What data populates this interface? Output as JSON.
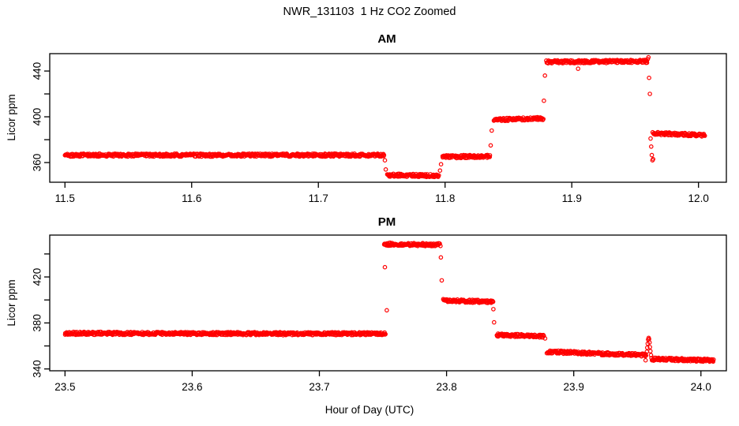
{
  "figure": {
    "title": "NWR_131103  1 Hz CO2 Zoomed",
    "xlabel": "Hour of Day (UTC)",
    "background_color": "#FFFFFF",
    "axis_color": "#000000",
    "point_color": "#FF0000",
    "marker": "open-circle"
  },
  "chart_data": [
    {
      "type": "scatter",
      "panel": "AM",
      "title": "AM",
      "ylabel": "Licor ppm",
      "xlim": [
        11.488,
        12.022
      ],
      "ylim": [
        342.8,
        455.2
      ],
      "xticks": [
        11.5,
        11.6,
        11.7,
        11.8,
        11.9,
        12.0
      ],
      "xtick_labels": [
        "11.5",
        "11.6",
        "11.7",
        "11.8",
        "11.9",
        "12.0"
      ],
      "yticks": [
        360,
        380,
        400,
        420,
        440
      ],
      "ytick_labels": [
        "360",
        "",
        "400",
        "",
        "440"
      ],
      "grid": false,
      "sample_rate_hz": 1,
      "segments": [
        {
          "t0": 11.5,
          "t1": 11.752,
          "ppm0": 366.5,
          "ppm1": 366.5
        },
        {
          "t0": 11.7545,
          "t1": 11.795,
          "ppm0": 349.0,
          "ppm1": 348.5
        },
        {
          "t0": 11.798,
          "t1": 11.8355,
          "ppm0": 365.0,
          "ppm1": 365.5
        },
        {
          "t0": 11.8385,
          "t1": 11.8775,
          "ppm0": 397.5,
          "ppm1": 398.5
        },
        {
          "t0": 11.88,
          "t1": 11.9595,
          "ppm0": 448.0,
          "ppm1": 448.5
        },
        {
          "t0": 11.964,
          "t1": 12.005,
          "ppm0": 385.5,
          "ppm1": 384.0
        }
      ],
      "points": [
        {
          "t": 11.7525,
          "ppm": 362.0
        },
        {
          "t": 11.7532,
          "ppm": 354.0
        },
        {
          "t": 11.796,
          "ppm": 353.0
        },
        {
          "t": 11.7968,
          "ppm": 358.5
        },
        {
          "t": 11.836,
          "ppm": 375.0
        },
        {
          "t": 11.8368,
          "ppm": 388.0
        },
        {
          "t": 11.878,
          "ppm": 414.0
        },
        {
          "t": 11.8788,
          "ppm": 436.0
        },
        {
          "t": 11.905,
          "ppm": 442.0
        },
        {
          "t": 11.96,
          "ppm": 450.5
        },
        {
          "t": 11.9605,
          "ppm": 452.0
        },
        {
          "t": 11.961,
          "ppm": 434.0
        },
        {
          "t": 11.9616,
          "ppm": 420.0
        },
        {
          "t": 11.9622,
          "ppm": 381.0
        },
        {
          "t": 11.9627,
          "ppm": 374.0
        },
        {
          "t": 11.9632,
          "ppm": 366.5
        },
        {
          "t": 11.9637,
          "ppm": 362.0
        },
        {
          "t": 11.9642,
          "ppm": 363.0
        }
      ]
    },
    {
      "type": "scatter",
      "panel": "PM",
      "title": "PM",
      "ylabel": "Licor ppm",
      "xlim": [
        23.488,
        24.02
      ],
      "ylim": [
        338.4,
        456.4
      ],
      "xticks": [
        23.5,
        23.6,
        23.7,
        23.8,
        23.9,
        24.0
      ],
      "xtick_labels": [
        "23.5",
        "23.6",
        "23.7",
        "23.8",
        "23.9",
        "24.0"
      ],
      "yticks": [
        340,
        360,
        380,
        400,
        420,
        440
      ],
      "ytick_labels": [
        "340",
        "",
        "380",
        "",
        "420",
        ""
      ],
      "grid": false,
      "sample_rate_hz": 1,
      "segments": [
        {
          "t0": 23.5,
          "t1": 23.752,
          "ppm0": 371.0,
          "ppm1": 370.5
        },
        {
          "t0": 23.751,
          "t1": 23.795,
          "ppm0": 448.5,
          "ppm1": 448.0
        },
        {
          "t0": 23.7975,
          "t1": 23.8365,
          "ppm0": 399.5,
          "ppm1": 398.5
        },
        {
          "t0": 23.8395,
          "t1": 23.8765,
          "ppm0": 369.5,
          "ppm1": 368.5
        },
        {
          "t0": 23.879,
          "t1": 23.957,
          "ppm0": 355.0,
          "ppm1": 352.0
        },
        {
          "t0": 23.962,
          "t1": 24.01,
          "ppm0": 348.5,
          "ppm1": 347.5
        }
      ],
      "points": [
        {
          "t": 23.7515,
          "ppm": 428.5
        },
        {
          "t": 23.753,
          "ppm": 391.0
        },
        {
          "t": 23.7955,
          "ppm": 437.0
        },
        {
          "t": 23.7962,
          "ppm": 417.0
        },
        {
          "t": 23.8368,
          "ppm": 392.0
        },
        {
          "t": 23.8374,
          "ppm": 380.5
        },
        {
          "t": 23.8775,
          "ppm": 366.5
        },
        {
          "t": 23.9565,
          "ppm": 347.5
        },
        {
          "t": 23.9575,
          "ppm": 355.0
        },
        {
          "t": 23.9578,
          "ppm": 358.5
        },
        {
          "t": 23.9582,
          "ppm": 362.0
        },
        {
          "t": 23.9585,
          "ppm": 365.5
        },
        {
          "t": 23.9589,
          "ppm": 367.0
        },
        {
          "t": 23.9592,
          "ppm": 366.0
        },
        {
          "t": 23.9596,
          "ppm": 363.0
        },
        {
          "t": 23.9599,
          "ppm": 359.0
        },
        {
          "t": 23.9603,
          "ppm": 355.5
        },
        {
          "t": 23.9607,
          "ppm": 352.0
        },
        {
          "t": 23.9611,
          "ppm": 349.5
        },
        {
          "t": 23.9615,
          "ppm": 347.5
        }
      ]
    }
  ]
}
